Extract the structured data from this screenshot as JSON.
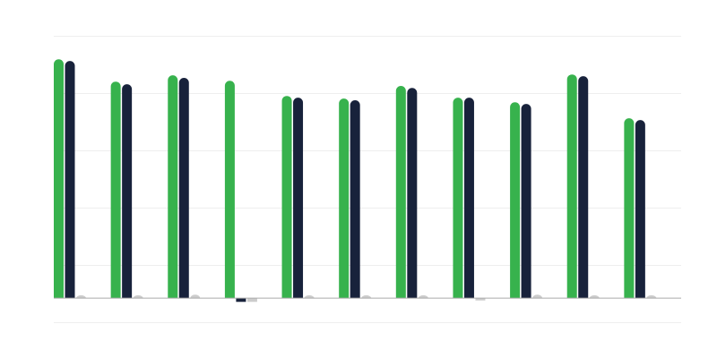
{
  "chart_data": {
    "type": "bar",
    "title": "",
    "xlabel": "",
    "ylabel": "",
    "categories": [
      "",
      "",
      "",
      "",
      "",
      "",
      "",
      "",
      "",
      "",
      ""
    ],
    "series": [
      {
        "values": [
          83.4,
          75.6,
          77.8,
          75.9,
          70.6,
          69.7,
          74.1,
          70.0,
          68.4,
          78.1,
          62.8
        ],
        "color": "#37b24d"
      },
      {
        "values": [
          82.8,
          74.7,
          76.9,
          -1.3,
          70.0,
          69.1,
          73.4,
          70.0,
          67.8,
          77.5,
          62.2
        ],
        "color": "#18223b"
      },
      {
        "values": [
          1.0,
          1.0,
          1.2,
          -1.3,
          1.0,
          1.0,
          1.0,
          -0.8,
          1.2,
          1.0,
          1.0
        ],
        "color": "#cccccc"
      }
    ],
    "ylim": [
      -8.4,
      91.6
    ],
    "grid": true,
    "gridline_color": "#eeeeee",
    "baseline_color": "#aaaaaa",
    "legend": "none"
  }
}
